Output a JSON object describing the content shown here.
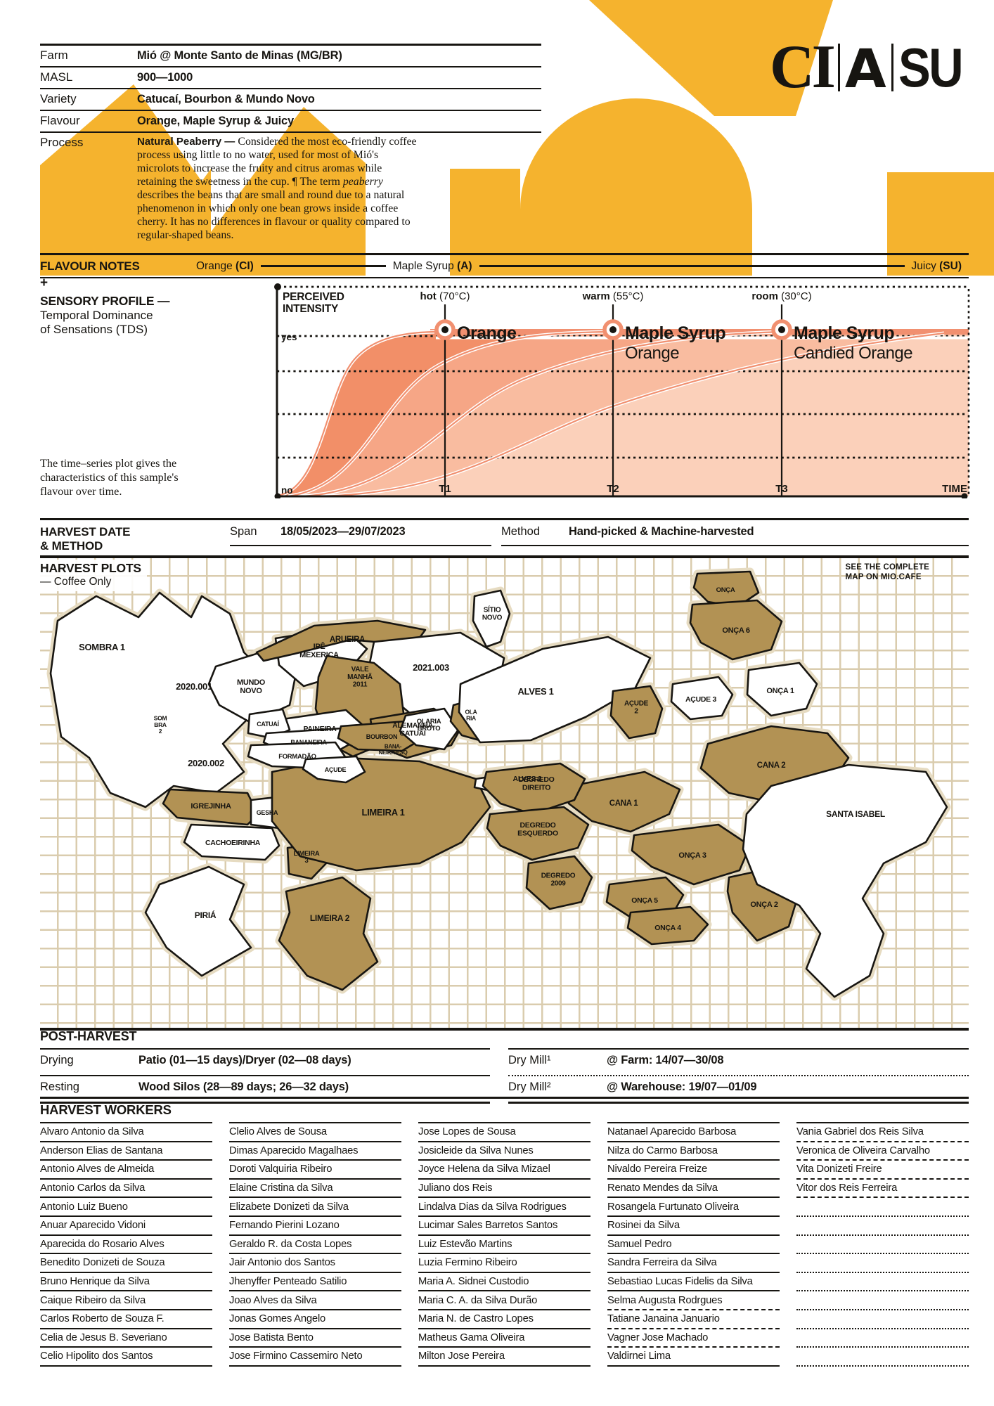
{
  "page": {
    "accent_yellow": "#F5B32E",
    "ink": "#171511",
    "salmon": "#F19070",
    "map_brown": "#B29254"
  },
  "logo": {
    "part1": "CI",
    "part2": "A",
    "part3": "SU"
  },
  "meta": {
    "rows": [
      {
        "label": "Farm",
        "value": "Mió @ Monte Santo de Minas (MG/BR)"
      },
      {
        "label": "MASL",
        "value": "900—1000"
      },
      {
        "label": "Variety",
        "value": "Catucaí, Bourbon & Mundo Novo"
      },
      {
        "label": "Flavour",
        "value": "Orange, Maple Syrup & Juicy"
      }
    ],
    "process_label": "Process",
    "process_parts": [
      {
        "t": "Natural Peaberry — ",
        "b": 1
      },
      {
        "t": "Considered the most eco-friendly coffee process using little to no water, used for most of Mió's microlots to increase the fruity and citrus aromas while retaining the sweetness in the cup. ¶ The term "
      },
      {
        "t": "peaberry",
        "i": 1
      },
      {
        "t": " describes the beans that are small and round due to a natural phenomenon in which only one bean grows inside a coffee cherry. It has no differences in flavour or quality compared to regular-shaped beans."
      }
    ]
  },
  "flavour_notes": {
    "title": "FLAVOUR NOTES",
    "notes": [
      {
        "name": "Orange",
        "code": "(CI)"
      },
      {
        "name": "Maple Syrup",
        "code": "(A)"
      },
      {
        "name": "Juicy",
        "code": "(SU)"
      }
    ]
  },
  "sensory": {
    "plus": "+",
    "title": "SENSORY PROFILE",
    "dash": " —",
    "subtitle_l1": "Temporal Dominance",
    "subtitle_l2": "of Sensations (TDS)",
    "caption": "The time–series plot gives the characteristics of this sample's flavour over time."
  },
  "chart_data": {
    "type": "area",
    "y_axis_l1": "PERCEIVED",
    "y_axis_l2": "INTENSITY",
    "y_yes": "yes",
    "y_no": "no",
    "x_ticks": [
      "T1",
      "T2",
      "T3",
      "TIME"
    ],
    "markers": [
      {
        "temp": "hot",
        "deg": " (70°C)",
        "main": "Orange",
        "sub": ""
      },
      {
        "temp": "warm",
        "deg": " (55°C)",
        "main": "Maple Syrup",
        "sub": "Orange"
      },
      {
        "temp": "room",
        "deg": " (30°C)",
        "main": "Maple Syrup",
        "sub": "Candied Orange"
      }
    ]
  },
  "harvest": {
    "title_l1": "HARVEST DATE",
    "title_l2": "& METHOD",
    "span_label": "Span",
    "span_value": "18/05/2023—29/07/2023",
    "method_label": "Method",
    "method_value": "Hand-picked & Machine-harvested"
  },
  "plots_map": {
    "title": "HARVEST PLOTS",
    "subtitle": "— Coffee Only",
    "note_l1": "SEE THE COMPLETE",
    "note_l2": "MAP ON ",
    "note_l2_bold": "MIO.CAFE",
    "plots": [
      {
        "id": "left_mass",
        "label": "",
        "fill": "w"
      },
      {
        "id": "sombra1",
        "label": "SOMBRA 1",
        "fill": "none"
      },
      {
        "id": "p2020_001",
        "label": "2020.001",
        "fill": "none"
      },
      {
        "id": "sombra2",
        "label": "SOM\nBRA\n2",
        "fill": "none"
      },
      {
        "id": "p2020_002",
        "label": "2020.002",
        "fill": "none"
      },
      {
        "id": "igrejinha",
        "label": "IGREJINHA",
        "fill": "b"
      },
      {
        "id": "gesha",
        "label": "GESHA",
        "fill": "w"
      },
      {
        "id": "cachoeirinha",
        "label": "CACHOEIRINHA",
        "fill": "w"
      },
      {
        "id": "limeira3",
        "label": "LIMEIRA\n3",
        "fill": "b"
      },
      {
        "id": "piria",
        "label": "PIRIÁ",
        "fill": "w"
      },
      {
        "id": "limeira2",
        "label": "LIMEIRA 2",
        "fill": "b"
      },
      {
        "id": "limeira1",
        "label": "LIMEIRA 1",
        "fill": "b"
      },
      {
        "id": "mundo_novo",
        "label": "MUNDO\nNOVO",
        "fill": "w"
      },
      {
        "id": "ipe_mexerica",
        "label": "IPÊ\nMEXERICA",
        "fill": "w"
      },
      {
        "id": "arueira",
        "label": "ARUEIRA",
        "fill": "b"
      },
      {
        "id": "p2021_003",
        "label": "2021.003",
        "fill": "w"
      },
      {
        "id": "vale",
        "label": "VALE\nMANHÃ\n2011",
        "fill": "b"
      },
      {
        "id": "alemanha",
        "label": "ALEMANHA\nCATUAÍ",
        "fill": "b"
      },
      {
        "id": "paineira",
        "label": "PAINEIRA",
        "fill": "w"
      },
      {
        "id": "catuai",
        "label": "CATUAÍ",
        "fill": "w"
      },
      {
        "id": "bananeira",
        "label": "BANANEIRA",
        "fill": "w"
      },
      {
        "id": "bourbon",
        "label": "BOURBON",
        "fill": "b"
      },
      {
        "id": "bana_esq",
        "label": "BANA-\nNEIRA ESQ",
        "fill": "none"
      },
      {
        "id": "formadao",
        "label": "FORMADÃO",
        "fill": "w"
      },
      {
        "id": "acude",
        "label": "AÇUDE",
        "fill": "w"
      },
      {
        "id": "olaria_broto",
        "label": "OLARIA\nBROTO",
        "fill": "w"
      },
      {
        "id": "olaria",
        "label": "OLA\nRIA",
        "fill": "b"
      },
      {
        "id": "sitio_novo",
        "label": "SÍTIO\nNOVO",
        "fill": "w"
      },
      {
        "id": "alves1",
        "label": "ALVES 1",
        "fill": "w"
      },
      {
        "id": "alves2",
        "label": "ALVES 2",
        "fill": "w"
      },
      {
        "id": "acude2",
        "label": "AÇUDE\n2",
        "fill": "b"
      },
      {
        "id": "acude3",
        "label": "AÇUDE 3",
        "fill": "w"
      },
      {
        "id": "onca_top",
        "label": "ONÇA",
        "fill": "b"
      },
      {
        "id": "onca6",
        "label": "ONÇA 6",
        "fill": "b"
      },
      {
        "id": "onca1",
        "label": "ONÇA 1",
        "fill": "w"
      },
      {
        "id": "cana2",
        "label": "CANA 2",
        "fill": "b"
      },
      {
        "id": "cana1",
        "label": "CANA 1",
        "fill": "b"
      },
      {
        "id": "deg_dir",
        "label": "DEGREDO\nDIREITO",
        "fill": "b"
      },
      {
        "id": "deg_esq",
        "label": "DEGREDO\nESQUERDO",
        "fill": "b"
      },
      {
        "id": "deg2009",
        "label": "DEGREDO\n2009",
        "fill": "b"
      },
      {
        "id": "onca5",
        "label": "ONÇA 5",
        "fill": "b"
      },
      {
        "id": "onca4",
        "label": "ONÇA 4",
        "fill": "b"
      },
      {
        "id": "onca3",
        "label": "ONÇA 3",
        "fill": "b"
      },
      {
        "id": "onca2",
        "label": "ONÇA 2",
        "fill": "b"
      },
      {
        "id": "santa_isabel",
        "label": "SANTA ISABEL",
        "fill": "w"
      }
    ]
  },
  "post_harvest": {
    "title": "POST-HARVEST",
    "left_rows": [
      {
        "label": "Drying",
        "value": "Patio (01—15 days)/Dryer (02—08 days)"
      },
      {
        "label": "Resting",
        "value": "Wood Silos (28—89 days; 26—32 days)"
      }
    ],
    "right_rows": [
      {
        "label": "Dry Mill¹",
        "value": "@ Farm: 14/07—30/08"
      },
      {
        "label": "Dry Mill²",
        "value": "@ Warehouse: 19/07—01/09"
      }
    ]
  },
  "workers": {
    "title": "HARVEST WORKERS",
    "columns": [
      [
        "Alvaro Antonio da Silva",
        "Anderson Elias de Santana",
        "Antonio Alves de Almeida",
        "Antonio Carlos da Silva",
        "Antonio Luiz Bueno",
        "Anuar Aparecido Vidoni",
        "Aparecida do Rosario Alves",
        "Benedito Donizeti de Souza",
        "Bruno Henrique da Silva",
        "Caique Ribeiro da Silva",
        "Carlos Roberto de Souza F.",
        "Celia de Jesus B. Severiano",
        "Celio Hipolito dos Santos"
      ],
      [
        "Clelio Alves de Sousa",
        "Dimas Aparecido Magalhaes",
        "Doroti Valquiria Ribeiro",
        "Elaine Cristina da Silva",
        "Elizabete Donizeti da Silva",
        "Fernando Pierini Lozano",
        "Geraldo R. da Costa Lopes",
        "Jair Antonio dos Santos",
        "Jhenyffer Penteado Satilio",
        "Joao Alves da Silva",
        "Jonas Gomes Angelo",
        "Jose Batista Bento",
        "Jose Firmino Cassemiro Neto"
      ],
      [
        "Jose Lopes de Sousa",
        "Josicleide da Silva Nunes",
        "Joyce Helena da Silva Mizael",
        "Juliano dos Reis",
        "Lindalva Dias da Silva Rodrigues",
        "Lucimar Sales Barretos Santos",
        "Luiz Estevão Martins",
        "Luzia Fermino Ribeiro",
        "Maria A. Sidnei Custodio",
        "Maria C. A. da Silva Durão",
        "Maria N. de Castro Lopes",
        "Matheus Gama Oliveira",
        "Milton Jose Pereira"
      ],
      [
        "Natanael Aparecido Barbosa",
        "Nilza do Carmo Barbosa",
        "Nivaldo Pereira Freize",
        "Renato Mendes da Silva",
        "Rosangela Furtunato Oliveira",
        "Rosinei da Silva",
        "Samuel Pedro",
        "Sandra Ferreira da Silva",
        "Sebastiao Lucas Fidelis da Silva",
        "Selma Augusta Rodrgues",
        "Tatiane Janaina Januario",
        "Vagner Jose Machado",
        "Valdirnei Lima"
      ],
      [
        "Vania Gabriel dos Reis Silva",
        "Veronica de Oliveira Carvalho",
        "Vita Donizeti Freire",
        "Vitor dos Reis Ferreira"
      ]
    ]
  }
}
